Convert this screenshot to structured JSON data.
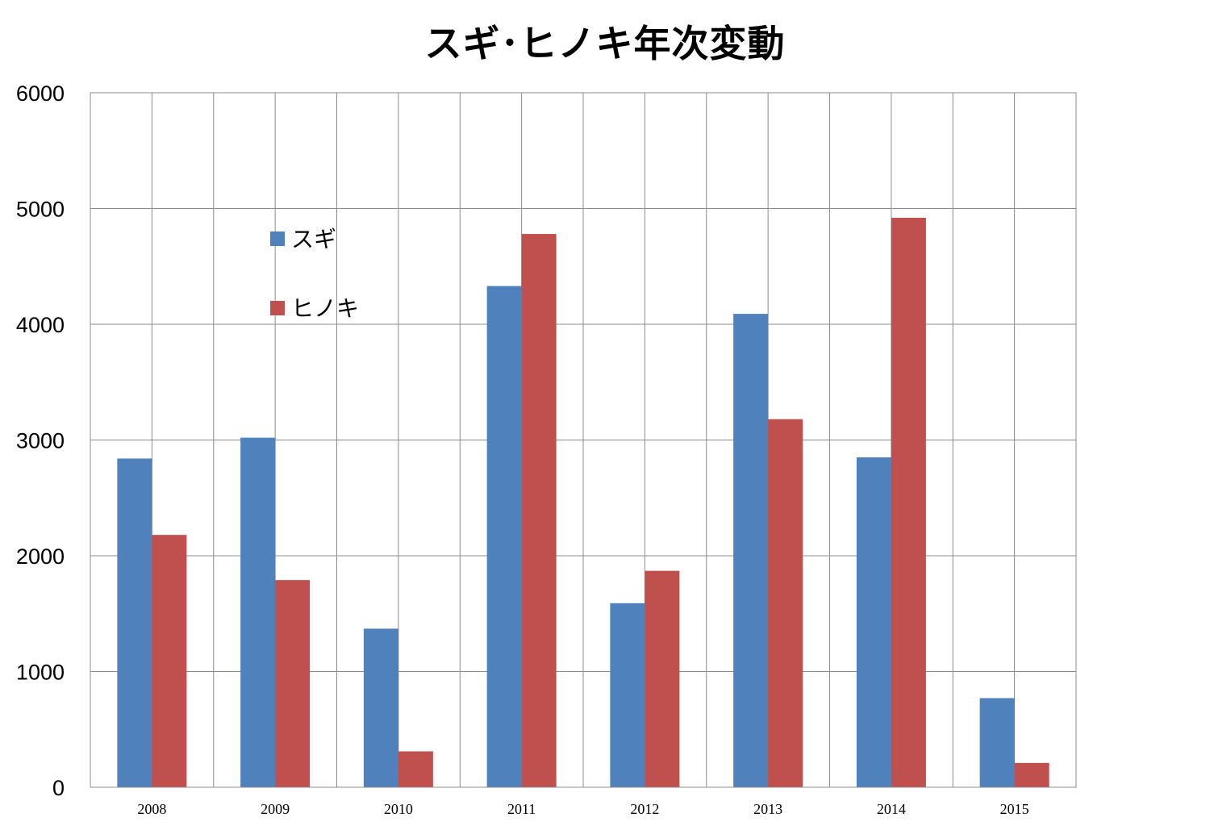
{
  "chart_data": {
    "type": "bar",
    "title": "スギ･ヒノキ年次変動",
    "xlabel": "",
    "ylabel": "",
    "categories": [
      "2008",
      "2009",
      "2010",
      "2011",
      "2012",
      "2013",
      "2014",
      "2015"
    ],
    "series": [
      {
        "name": "スギ",
        "color": "#4F81BD",
        "values": [
          2840,
          3020,
          1370,
          4330,
          1590,
          4090,
          2850,
          770
        ]
      },
      {
        "name": "ヒノキ",
        "color": "#C0504D",
        "values": [
          2180,
          1790,
          310,
          4780,
          1870,
          3180,
          4920,
          210
        ]
      }
    ],
    "ylim": [
      0,
      6000
    ],
    "yticks": [
      "0",
      "1000",
      "2000",
      "3000",
      "4000",
      "5000",
      "6000"
    ],
    "grid": true,
    "legend_position": "upper-left inside plot"
  }
}
